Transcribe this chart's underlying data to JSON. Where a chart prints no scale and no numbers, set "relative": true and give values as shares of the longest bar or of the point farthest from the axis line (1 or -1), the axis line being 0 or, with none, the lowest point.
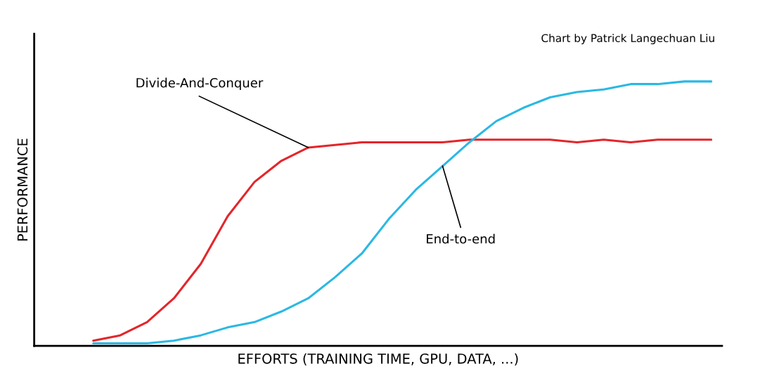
{
  "chart_data": {
    "type": "line",
    "relative": true,
    "xlabel": "EFFORTS (TRAINING TIME, GPU, DATA, ...)",
    "ylabel": "PERFORMANCE",
    "annotations": [
      "Chart by Patrick Langechuan Liu"
    ],
    "categories": [
      null,
      null,
      null,
      null,
      null,
      null,
      null,
      null,
      null,
      null,
      null,
      null,
      null,
      null,
      null,
      null,
      null,
      null,
      null,
      null,
      null,
      null,
      null,
      null
    ],
    "series": [
      {
        "name": "Divide-And-Conquer",
        "color": "#e3262b",
        "values": [
          0.02,
          0.04,
          0.09,
          0.18,
          0.31,
          0.49,
          0.62,
          0.7,
          0.75,
          0.76,
          0.77,
          0.77,
          0.77,
          0.77,
          0.78,
          0.78,
          0.78,
          0.78,
          0.77,
          0.78,
          0.77,
          0.78,
          0.78,
          0.78
        ]
      },
      {
        "name": "End-to-end",
        "color": "#2bb8e3",
        "values": [
          0.01,
          0.01,
          0.01,
          0.02,
          0.04,
          0.07,
          0.09,
          0.13,
          0.18,
          0.26,
          0.35,
          0.48,
          0.59,
          0.68,
          0.77,
          0.85,
          0.9,
          0.94,
          0.96,
          0.97,
          0.99,
          0.99,
          1.0,
          1.0
        ]
      }
    ],
    "grid": false,
    "legend": false,
    "marker": "none",
    "line_style": "solid"
  }
}
